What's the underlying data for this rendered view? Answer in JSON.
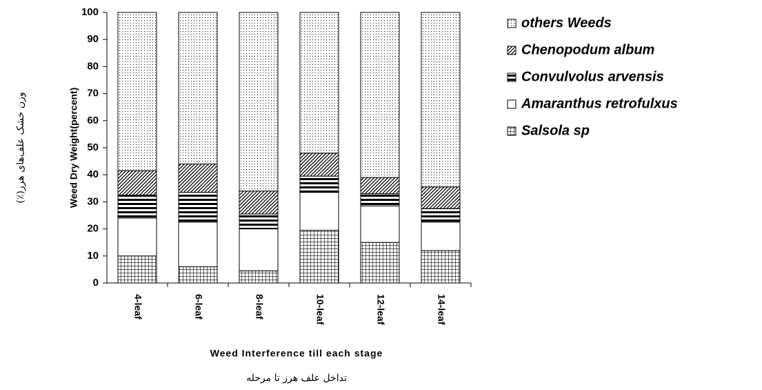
{
  "chart_data": {
    "type": "stacked_bar",
    "y_label": "Weed Dry Weight(percent)",
    "y_label_secondary": "وزن خشک علف‌های هرز(٪)",
    "x_label": "Weed Interference till each stage",
    "x_label_secondary": "تداخل علف هرز تا مرحله",
    "categories": [
      "4-leaf",
      "6-leaf",
      "8-leaf",
      "10-leaf",
      "12-leaf",
      "14-leaf"
    ],
    "series": [
      {
        "name": "Salsola sp",
        "color": "#000000",
        "pattern": "grid",
        "values": [
          10,
          6,
          4.5,
          19.5,
          15,
          12
        ]
      },
      {
        "name": "Amaranthus retrofulxus",
        "color": "#000000",
        "pattern": "blank",
        "values": [
          14,
          16.5,
          15.5,
          14,
          13.5,
          10.5
        ]
      },
      {
        "name": "Convulvolus arvensis",
        "color": "#000000",
        "pattern": "stripes",
        "values": [
          8.5,
          11,
          5.5,
          6,
          4.5,
          5
        ]
      },
      {
        "name": "Chenopodum album",
        "color": "#000000",
        "pattern": "diagonal",
        "values": [
          9,
          10.5,
          8.5,
          8.5,
          6,
          8
        ]
      },
      {
        "name": "others Weeds",
        "color": "#000000",
        "pattern": "dots",
        "values": [
          58.5,
          56,
          66,
          52,
          61,
          64.5
        ]
      }
    ],
    "ylim": [
      0,
      100
    ],
    "yticks": [
      0,
      10,
      20,
      30,
      40,
      50,
      60,
      70,
      80,
      90,
      100
    ]
  }
}
